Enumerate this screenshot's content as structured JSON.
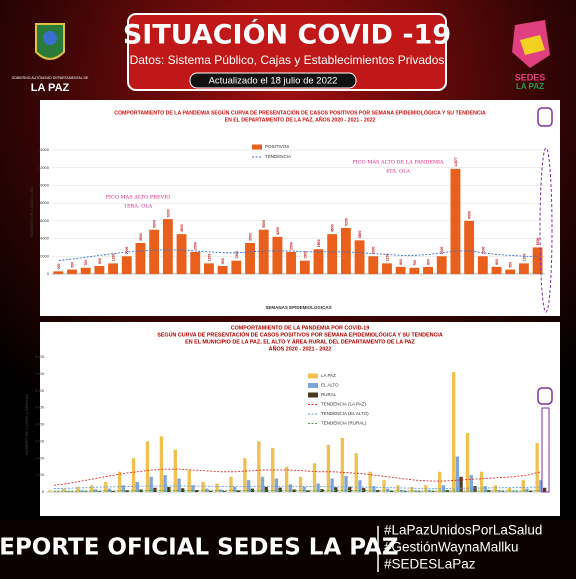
{
  "header": {
    "title": "SITUACIÓN COVID -19",
    "subtitle": "Datos: Sistema Público, Cajas y Establecimientos Privados",
    "updated": "Actualizado el  18  julio de 2022",
    "logo_left": "LA PAZ",
    "logo_left_caption": "GOBIERNO AUTÓNOMO DEPARTAMENTAL DE",
    "logo_right": "SEDES",
    "logo_right_2": "LA PAZ"
  },
  "chart_data": [
    {
      "type": "bar",
      "title": [
        "COMPORTAMIENTO DE LA PANDEMIA SEGÚN CURVA DE PRESENTACIÓN DE CASOS POSITIVOS POR SEMANA EPIDEMIOLÓGICA Y SU TENDENCIA",
        "EN EL DEPARTAMENTO DE LA PAZ, AÑOS 2020 - 2021 - 2022"
      ],
      "y_label": "NÚMERO DE CASOS x SE",
      "x_label": "SEMANAS EPIDEMIOLOGICAS",
      "annotations": [
        "PICO MÁS ALTO PREVIO",
        "1ERA. OLA",
        "PICO MÁS ALTO DE LA PANDEMIA",
        "4TA. OLA"
      ],
      "categories": [
        null,
        null,
        null,
        null,
        null,
        null,
        null,
        null,
        null,
        null,
        null,
        null,
        null,
        null,
        null,
        null,
        null,
        null,
        null,
        null,
        null,
        null,
        null,
        null,
        null,
        null,
        null,
        null,
        null,
        null,
        null,
        null,
        null,
        null,
        null,
        null
      ],
      "series": [
        {
          "name": "POSITIVOS",
          "type": "bar",
          "color": "#e8601c",
          "values": [
            300,
            500,
            700,
            900,
            1200,
            2000,
            3500,
            5000,
            6200,
            4500,
            2500,
            1200,
            900,
            1500,
            3500,
            5000,
            4200,
            2500,
            1500,
            2800,
            4500,
            5200,
            3800,
            2000,
            1200,
            800,
            700,
            800,
            2000,
            11877,
            6000,
            2000,
            800,
            500,
            1200,
            3000
          ]
        },
        {
          "name": "TENDENCIA",
          "type": "line",
          "color": "#3a6fd0",
          "values": [
            1500,
            1700,
            1900,
            2100,
            2300,
            2500,
            2600,
            2700,
            2700,
            2700,
            2600,
            2500,
            2400,
            2400,
            2500,
            2600,
            2600,
            2600,
            2500,
            2500,
            2500,
            2500,
            2400,
            2300,
            2200,
            2100,
            2100,
            2200,
            2400,
            2600,
            2600,
            2400,
            2200,
            2100,
            2000,
            2000
          ]
        }
      ],
      "ylim": [
        0,
        14000
      ],
      "yticks": [
        0,
        2000,
        4000,
        6000,
        8000,
        10000,
        12000,
        14000
      ],
      "grid": true,
      "legend": "top"
    },
    {
      "type": "bar",
      "title": [
        "COMPORTAMIENTO DE LA PANDEMIA POR COVID-19",
        "SEGÚN CURVA DE PRESENTACIÓN DE CASOS POSITIVOS POR SEMANA EPIDEMIOLÓGICA Y SU TENDENCIA",
        "EN EL  MUNICIPIO DE LA PAZ, EL ALTO Y ÁREA RURAL DEL DEPARTAMENTO DE LA PAZ",
        "AÑOS 2020 - 2021 - 2022"
      ],
      "y_label": "NÚMERO DE CASOS x SEMANA",
      "categories": [
        null,
        null,
        null,
        null,
        null,
        null,
        null,
        null,
        null,
        null,
        null,
        null,
        null,
        null,
        null,
        null,
        null,
        null,
        null,
        null,
        null,
        null,
        null,
        null,
        null,
        null,
        null,
        null,
        null,
        null,
        null,
        null,
        null,
        null,
        null,
        null
      ],
      "series": [
        {
          "name": "LA PAZ",
          "type": "bar",
          "color": "#f0c050",
          "values": [
            100,
            200,
            300,
            400,
            600,
            1200,
            2000,
            3000,
            3300,
            2500,
            1300,
            600,
            500,
            900,
            2000,
            3000,
            2600,
            1500,
            900,
            1700,
            2800,
            3200,
            2300,
            1200,
            700,
            400,
            300,
            400,
            1200,
            7100,
            3500,
            1200,
            400,
            250,
            700,
            2900
          ]
        },
        {
          "name": "EL ALTO",
          "type": "bar",
          "color": "#7ea6d8",
          "values": [
            30,
            60,
            100,
            150,
            200,
            400,
            600,
            900,
            1000,
            800,
            400,
            200,
            150,
            300,
            700,
            900,
            800,
            450,
            300,
            500,
            800,
            950,
            700,
            350,
            200,
            120,
            100,
            120,
            400,
            2100,
            1000,
            350,
            120,
            80,
            200,
            700
          ]
        },
        {
          "name": "RURAL",
          "type": "bar",
          "color": "#4a3a20",
          "values": [
            10,
            20,
            30,
            40,
            60,
            100,
            150,
            250,
            300,
            220,
            120,
            60,
            50,
            90,
            200,
            300,
            260,
            150,
            90,
            170,
            280,
            320,
            230,
            120,
            70,
            40,
            30,
            40,
            120,
            900,
            350,
            120,
            40,
            25,
            70,
            250
          ]
        },
        {
          "name": "TENDENCIA (LA PAZ)",
          "type": "line",
          "color": "#e03030",
          "values": [
            400,
            500,
            650,
            800,
            950,
            1100,
            1200,
            1300,
            1350,
            1350,
            1300,
            1250,
            1200,
            1200,
            1250,
            1300,
            1300,
            1300,
            1250,
            1200,
            1200,
            1150,
            1100,
            1000,
            900,
            800,
            700,
            650,
            650,
            700,
            750,
            800,
            850,
            900,
            1000,
            1200
          ]
        },
        {
          "name": "TENDENCIA (EL ALTO)",
          "type": "line",
          "color": "#60a0e0",
          "values": [
            200,
            220,
            250,
            280,
            300,
            320,
            340,
            350,
            360,
            360,
            350,
            340,
            330,
            330,
            330,
            340,
            340,
            340,
            330,
            320,
            310,
            300,
            290,
            280,
            260,
            240,
            220,
            210,
            210,
            220,
            230,
            240,
            250,
            260,
            270,
            300
          ]
        },
        {
          "name": "TENDENCIA (RURAL)",
          "type": "line",
          "color": "#50a050",
          "values": [
            50,
            55,
            60,
            65,
            70,
            75,
            80,
            85,
            90,
            90,
            90,
            90,
            90,
            90,
            90,
            95,
            95,
            95,
            95,
            90,
            90,
            90,
            85,
            80,
            75,
            70,
            65,
            60,
            60,
            60,
            65,
            65,
            70,
            70,
            75,
            80
          ]
        }
      ],
      "ylim": [
        0,
        8000
      ],
      "yticks": [
        0,
        1000,
        2000,
        3000,
        4000,
        5000,
        6000,
        7000,
        8000
      ],
      "grid": false,
      "legend": "right"
    }
  ],
  "footer": {
    "title": "REPORTE OFICIAL SEDES LA PAZ",
    "hashtags": [
      "#LaPazUnidosPorLaSalud",
      "#GestiónWaynaMallku",
      "#SEDESLaPaz"
    ]
  }
}
